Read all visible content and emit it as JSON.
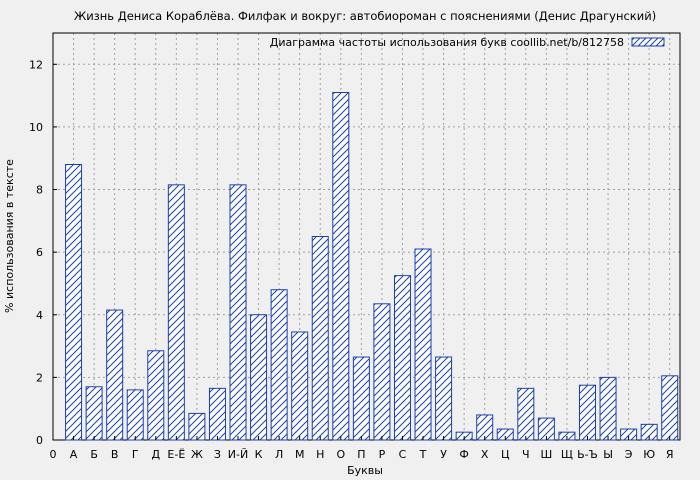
{
  "chart_data": {
    "type": "bar",
    "title": "Жизнь Дениса Кораблёва. Филфак и вокруг: автобиороман с пояснениями (Денис Драгунский)",
    "xlabel": "Буквы",
    "ylabel": "% использования в тексте",
    "legend": "Диаграмма частоты использования букв coollib.net/b/812758",
    "legend_position": "top-right",
    "grid": true,
    "ylim": [
      0,
      13
    ],
    "yticks": [
      0,
      2,
      4,
      6,
      8,
      10,
      12
    ],
    "x_start_label": "0",
    "categories": [
      "А",
      "Б",
      "В",
      "Г",
      "Д",
      "Е-Ё",
      "Ж",
      "З",
      "И-Й",
      "К",
      "Л",
      "М",
      "Н",
      "О",
      "П",
      "Р",
      "С",
      "Т",
      "У",
      "Ф",
      "Х",
      "Ц",
      "Ч",
      "Ш",
      "Щ",
      "Ь-Ъ",
      "Ы",
      "Э",
      "Ю",
      "Я"
    ],
    "values": [
      8.8,
      1.7,
      4.15,
      1.6,
      2.85,
      8.15,
      0.85,
      1.65,
      8.15,
      4.0,
      4.8,
      3.45,
      6.5,
      11.1,
      2.65,
      4.35,
      5.25,
      6.1,
      2.65,
      0.25,
      0.8,
      0.35,
      1.65,
      0.7,
      0.25,
      1.75,
      2.0,
      0.35,
      0.5,
      2.05
    ],
    "colors": {
      "bar_stroke": "#1a3fb0",
      "hatch": "#1a3fb0",
      "bar_fill": "#ffffff",
      "grid": "#a0a0a0",
      "background": "#f0f0f0"
    }
  }
}
